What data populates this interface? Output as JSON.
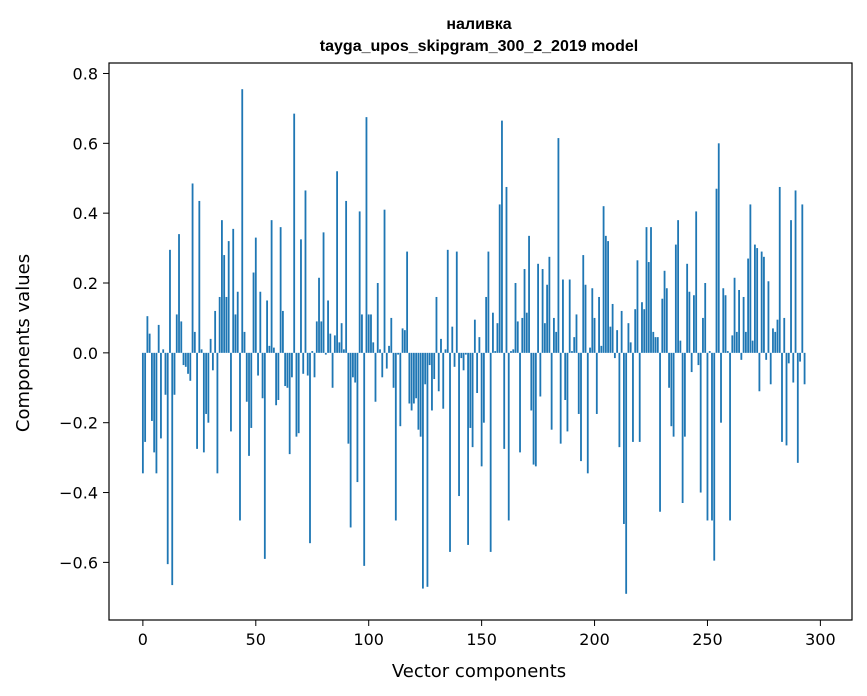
{
  "chart_data": {
    "type": "bar",
    "title": "наливка",
    "subtitle": "tayga_upos_skipgram_300_2_2019 model",
    "xlabel": "Vector components",
    "ylabel": "Components values",
    "xlim": [
      -15,
      314
    ],
    "ylim": [
      -0.765,
      0.83
    ],
    "xticks": [
      0,
      50,
      100,
      150,
      200,
      250,
      300
    ],
    "xtick_labels": [
      "0",
      "50",
      "100",
      "150",
      "200",
      "250",
      "300"
    ],
    "yticks": [
      -0.6,
      -0.4,
      -0.2,
      0.0,
      0.2,
      0.4,
      0.6,
      0.8
    ],
    "ytick_labels": [
      "−0.6",
      "−0.4",
      "−0.2",
      "0.0",
      "0.2",
      "0.4",
      "0.6",
      "0.8"
    ],
    "bar_color": "#1f77b4",
    "grid": false,
    "values": [
      -0.345,
      -0.255,
      0.105,
      0.055,
      -0.195,
      -0.285,
      -0.345,
      0.08,
      -0.245,
      0.01,
      -0.12,
      -0.605,
      0.295,
      -0.665,
      -0.12,
      0.11,
      0.34,
      0.09,
      -0.035,
      -0.04,
      -0.06,
      -0.08,
      0.485,
      0.06,
      -0.275,
      0.435,
      0.01,
      -0.285,
      -0.175,
      -0.2,
      0.04,
      -0.05,
      0.12,
      -0.345,
      0.16,
      0.38,
      0.28,
      0.16,
      0.32,
      -0.225,
      0.355,
      0.11,
      0.175,
      -0.48,
      0.755,
      0.06,
      -0.14,
      -0.295,
      -0.215,
      0.23,
      0.33,
      -0.065,
      0.175,
      -0.13,
      -0.59,
      0.15,
      0.02,
      0.38,
      0.015,
      -0.15,
      -0.135,
      0.36,
      0.12,
      -0.095,
      -0.1,
      -0.29,
      -0.07,
      0.685,
      -0.24,
      -0.23,
      0.325,
      -0.06,
      0.465,
      -0.065,
      -0.545,
      0.005,
      -0.07,
      0.09,
      0.215,
      0.09,
      0.345,
      -0.005,
      0.15,
      0.055,
      -0.1,
      0.05,
      0.52,
      0.03,
      0.085,
      0.01,
      0.435,
      -0.26,
      -0.5,
      -0.07,
      -0.085,
      -0.37,
      0.405,
      0.11,
      -0.61,
      0.675,
      0.11,
      0.11,
      0.03,
      -0.14,
      0.2,
      0.01,
      -0.07,
      0.41,
      -0.045,
      0.02,
      0.1,
      -0.1,
      -0.48,
      -0.005,
      -0.21,
      0.07,
      0.065,
      0.29,
      -0.145,
      -0.165,
      -0.145,
      -0.13,
      -0.22,
      -0.24,
      -0.675,
      -0.09,
      -0.67,
      -0.035,
      -0.165,
      -0.075,
      0.16,
      -0.11,
      0.04,
      -0.16,
      0.01,
      0.295,
      -0.57,
      0.075,
      -0.04,
      0.29,
      -0.41,
      -0.015,
      -0.05,
      -0.005,
      -0.55,
      -0.215,
      -0.27,
      0.095,
      -0.115,
      0.045,
      -0.325,
      -0.2,
      0.16,
      0.29,
      -0.57,
      0.115,
      0.005,
      0.085,
      0.425,
      0.665,
      -0.275,
      0.475,
      -0.48,
      0.005,
      0.01,
      0.2,
      0.09,
      -0.285,
      0.1,
      0.24,
      0.115,
      0.335,
      -0.165,
      -0.32,
      -0.325,
      0.255,
      -0.125,
      0.24,
      0.085,
      0.195,
      0.275,
      -0.22,
      0.1,
      0.06,
      0.615,
      -0.26,
      0.21,
      -0.135,
      -0.225,
      0.21,
      0.005,
      0.045,
      0.11,
      -0.175,
      -0.31,
      0.28,
      0.195,
      -0.345,
      0.015,
      0.185,
      0.1,
      -0.175,
      0.16,
      0.02,
      0.42,
      0.335,
      0.32,
      0.075,
      0.14,
      -0.015,
      0.065,
      -0.27,
      0.12,
      -0.49,
      -0.69,
      0.085,
      0.03,
      -0.255,
      0.125,
      0.265,
      -0.255,
      0.145,
      0.125,
      0.36,
      0.26,
      0.36,
      0.06,
      0.045,
      0.045,
      -0.455,
      0.155,
      0.235,
      0.185,
      -0.1,
      -0.21,
      -0.24,
      0.31,
      0.38,
      0.035,
      -0.43,
      -0.24,
      0.255,
      0.175,
      -0.055,
      0.165,
      0.405,
      -0.035,
      -0.4,
      0.1,
      0.2,
      -0.48,
      0.005,
      -0.48,
      -0.595,
      0.47,
      0.6,
      -0.2,
      0.185,
      0.165,
      0.005,
      -0.48,
      0.05,
      0.215,
      0.06,
      0.18,
      -0.02,
      0.16,
      0.06,
      0.27,
      0.425,
      0.035,
      0.31,
      0.3,
      -0.11,
      0.29,
      0.275,
      -0.02,
      0.205,
      -0.09,
      0.07,
      0.06,
      0.095,
      0.475,
      -0.255,
      0.1,
      -0.265,
      -0.03,
      0.38,
      -0.085,
      0.465,
      -0.315,
      -0.025,
      0.425,
      -0.09
    ]
  }
}
